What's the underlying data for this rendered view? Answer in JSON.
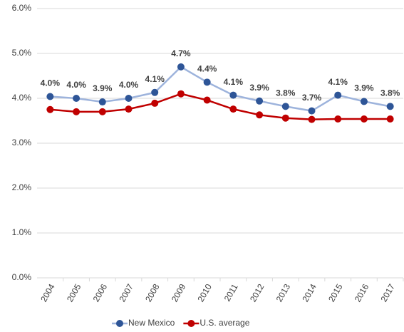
{
  "chart_data": {
    "type": "line",
    "categories": [
      "2004",
      "2005",
      "2006",
      "2007",
      "2008",
      "2009",
      "2010",
      "2011",
      "2012",
      "2013",
      "2014",
      "2015",
      "2016",
      "2017"
    ],
    "series": [
      {
        "name": "New Mexico",
        "color": "#2e5597",
        "line_color": "#9db3dc",
        "values": [
          4.04,
          4.0,
          3.92,
          4.0,
          4.13,
          4.7,
          4.36,
          4.07,
          3.94,
          3.82,
          3.72,
          4.07,
          3.93,
          3.82
        ],
        "value_labels": [
          "4.0%",
          "4.0%",
          "3.9%",
          "4.0%",
          "4.1%",
          "4.7%",
          "4.4%",
          "4.1%",
          "3.9%",
          "3.8%",
          "3.7%",
          "4.1%",
          "3.9%",
          "3.8%"
        ]
      },
      {
        "name": "U.S. average",
        "color": "#c00000",
        "line_color": "#c00000",
        "values": [
          3.75,
          3.7,
          3.7,
          3.76,
          3.89,
          4.1,
          3.96,
          3.76,
          3.63,
          3.56,
          3.53,
          3.54,
          3.54,
          3.54
        ]
      }
    ],
    "ylim": [
      0,
      6
    ],
    "yticks": [
      {
        "value": 0,
        "label": "0.0%"
      },
      {
        "value": 1,
        "label": "1.0%"
      },
      {
        "value": 2,
        "label": "2.0%"
      },
      {
        "value": 3,
        "label": "3.0%"
      },
      {
        "value": 4,
        "label": "4.0%"
      },
      {
        "value": 5,
        "label": "5.0%"
      },
      {
        "value": 6,
        "label": "6.0%"
      }
    ],
    "grid": true
  }
}
